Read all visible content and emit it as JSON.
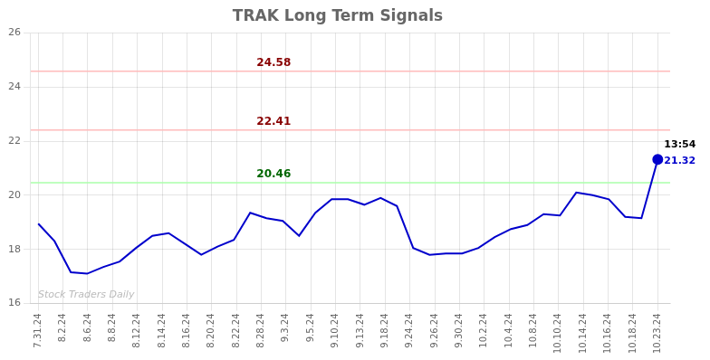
{
  "chart_data": {
    "type": "line",
    "title": "TRAK Long Term Signals",
    "x": [
      0,
      0.6578947368421053,
      1.3157894736842106,
      1.9736842105263157,
      2.631578947368421,
      3.289473684210526,
      3.9473684210526314,
      4.605263157894737,
      5.263157894736842,
      5.921052631578947,
      6.578947368421052,
      7.2368421052631575,
      7.894736842105263,
      8.552631578947368,
      9.210526315789474,
      9.868421052631579,
      10.526315789473683,
      11.18421052631579,
      11.842105263157894,
      12.5,
      13.157894736842104,
      13.81578947368421,
      14.473684210526315,
      15.131578947368421,
      15.789473684210526,
      16.44736842105263,
      17.105263157894736,
      17.763157894736842,
      18.42105263157895,
      19.07894736842105,
      19.736842105263158,
      20.394736842105264,
      21.05263157894737,
      21.710526315789473,
      22.36842105263158,
      23.02631578947368,
      23.68421052631579,
      24.342105263157894,
      25
    ],
    "values": [
      18.95,
      18.3,
      17.15,
      17.1,
      17.35,
      17.55,
      18.05,
      18.5,
      18.6,
      18.2,
      17.8,
      18.1,
      18.35,
      19.35,
      19.15,
      19.05,
      18.5,
      19.35,
      19.85,
      19.85,
      19.65,
      19.9,
      19.6,
      18.05,
      17.8,
      17.85,
      17.85,
      18.05,
      18.45,
      18.75,
      18.9,
      19.3,
      19.25,
      20.1,
      20.0,
      19.85,
      19.2,
      19.15,
      21.32
    ],
    "color": "#0000cc",
    "xlim": [
      -0.3,
      25.5
    ],
    "xticks": [
      {
        "value": 0,
        "label": "7.31.24"
      },
      {
        "value": 1,
        "label": "8.2.24"
      },
      {
        "value": 2,
        "label": "8.6.24"
      },
      {
        "value": 3,
        "label": "8.8.24"
      },
      {
        "value": 4,
        "label": "8.12.24"
      },
      {
        "value": 5,
        "label": "8.14.24"
      },
      {
        "value": 6,
        "label": "8.16.24"
      },
      {
        "value": 7,
        "label": "8.20.24"
      },
      {
        "value": 8,
        "label": "8.22.24"
      },
      {
        "value": 9,
        "label": "8.28.24"
      },
      {
        "value": 10,
        "label": "9.3.24"
      },
      {
        "value": 11,
        "label": "9.5.24"
      },
      {
        "value": 12,
        "label": "9.10.24"
      },
      {
        "value": 13,
        "label": "9.13.24"
      },
      {
        "value": 14,
        "label": "9.18.24"
      },
      {
        "value": 15,
        "label": "9.24.24"
      },
      {
        "value": 16,
        "label": "9.26.24"
      },
      {
        "value": 17,
        "label": "9.30.24"
      },
      {
        "value": 18,
        "label": "10.2.24"
      },
      {
        "value": 19,
        "label": "10.4.24"
      },
      {
        "value": 20,
        "label": "10.8.24"
      },
      {
        "value": 21,
        "label": "10.10.24"
      },
      {
        "value": 22,
        "label": "10.14.24"
      },
      {
        "value": 23,
        "label": "10.16.24"
      },
      {
        "value": 24,
        "label": "10.18.24"
      },
      {
        "value": 25,
        "label": "10.23.24"
      }
    ],
    "ylim": [
      16,
      26
    ],
    "yticks": [
      16,
      18,
      20,
      22,
      24,
      26
    ],
    "grid": true,
    "hlines": [
      {
        "y": 24.58,
        "label": "24.58",
        "color": "#ffbbbb",
        "label_color": "#880000"
      },
      {
        "y": 22.41,
        "label": "22.41",
        "color": "#ffbbbb",
        "label_color": "#880000"
      },
      {
        "y": 20.46,
        "label": "20.46",
        "color": "#aaffaa",
        "label_color": "#006600"
      }
    ],
    "last_point_labels": [
      {
        "text": "13:54",
        "color": "#000000"
      },
      {
        "text": "21.32",
        "color": "#0000cc"
      }
    ],
    "watermark": {
      "text": "Stock Traders Daily",
      "color": "#bbbbbb"
    }
  }
}
